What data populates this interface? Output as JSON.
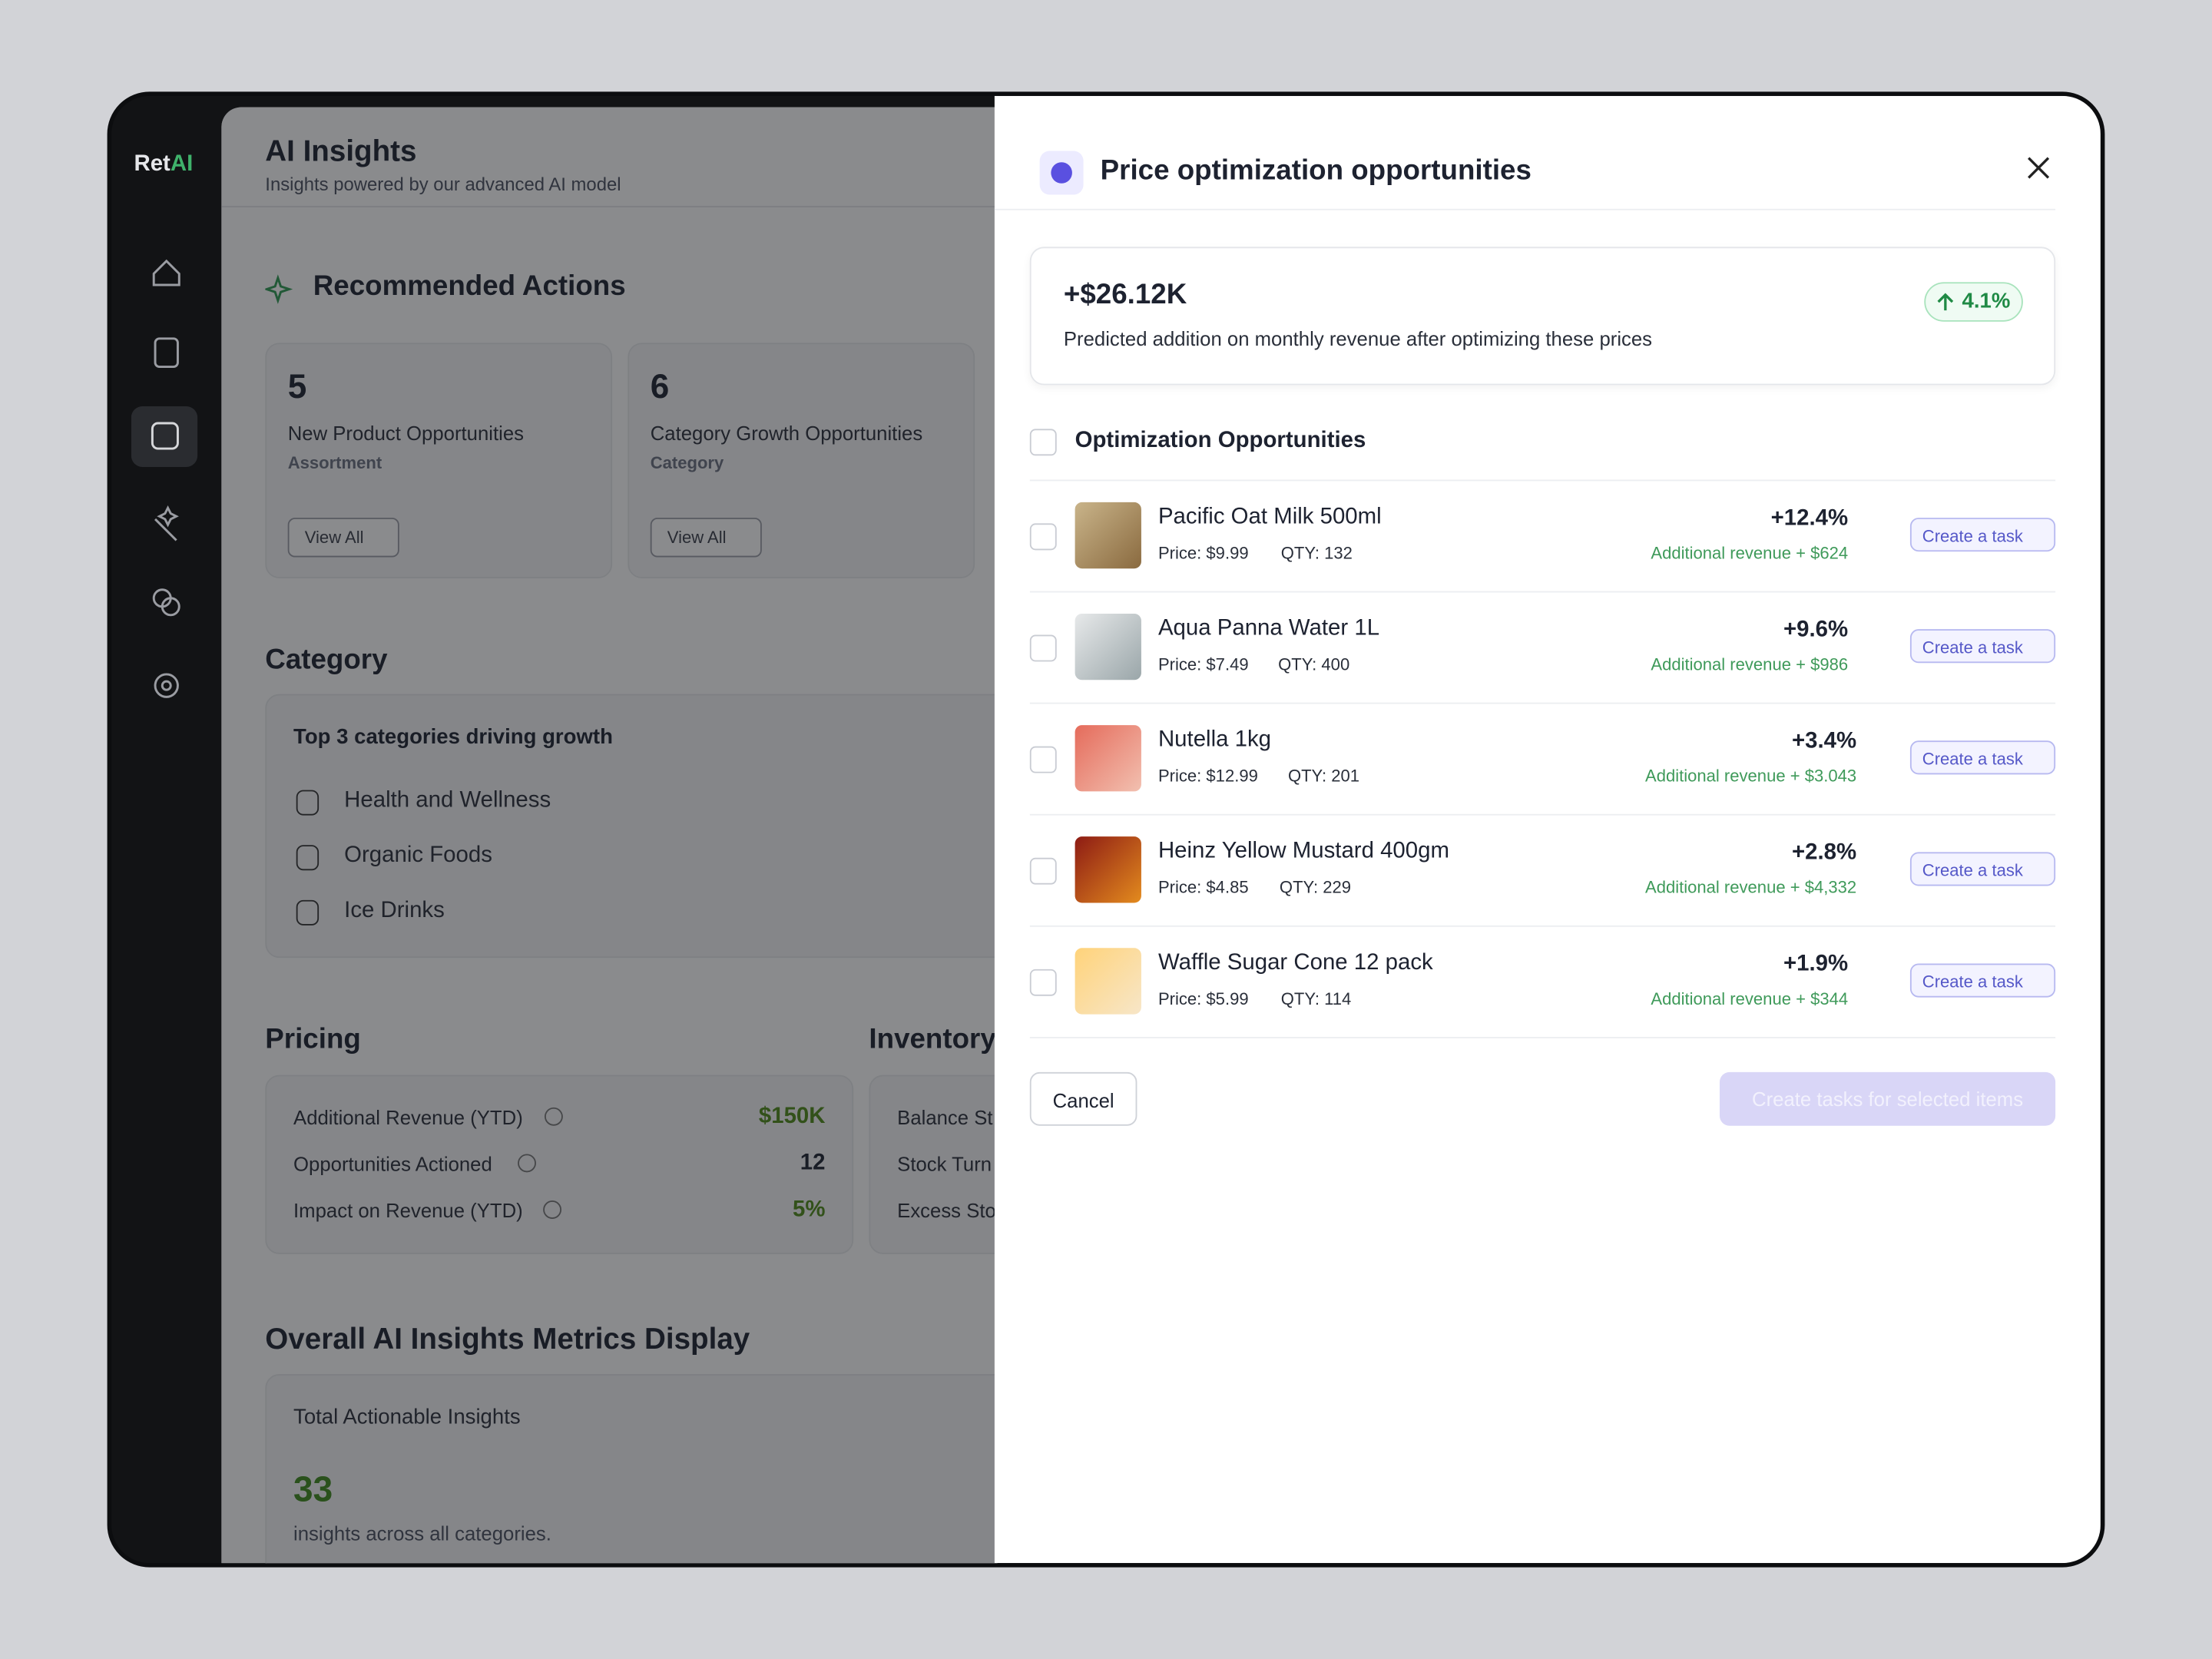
{
  "sidebar": {
    "logo_ret": "Ret",
    "logo_ai": "AI"
  },
  "header": {
    "title": "AI Insights",
    "subtitle": "Insights powered by our advanced AI model"
  },
  "recommended": {
    "title": "Recommended Actions",
    "cards": [
      {
        "count": "5",
        "label": "New Product Opportunities",
        "tag": "Assortment",
        "button": "View All"
      },
      {
        "count": "6",
        "label": "Category Growth Opportunities",
        "tag": "Category",
        "button": "View All"
      }
    ]
  },
  "category": {
    "title": "Category",
    "card_title": "Top 3 categories driving growth",
    "items": [
      "Health and Wellness",
      "Organic Foods",
      "Ice Drinks"
    ]
  },
  "pricing": {
    "title": "Pricing",
    "rows": [
      {
        "label": "Additional Revenue (YTD)",
        "value": "$150K"
      },
      {
        "label": "Opportunities Actioned",
        "value": "12"
      },
      {
        "label": "Impact on Revenue (YTD)",
        "value": "5%"
      }
    ]
  },
  "inventory": {
    "title": "Inventory",
    "rows": [
      "Balance St",
      "Stock Turn",
      "Excess Sto"
    ]
  },
  "metrics": {
    "title": "Overall AI Insights Metrics Display",
    "card_title": "Total Actionable Insights",
    "value": "33",
    "caption": "insights across all categories."
  },
  "modal": {
    "title": "Price optimization opportunities",
    "summary": {
      "value": "+$26.12K",
      "caption": "Predicted addition on monthly revenue after optimizing these prices",
      "badge": "4.1%"
    },
    "list_title": "Optimization Opportunities",
    "items": [
      {
        "name": "Pacific Oat Milk 500ml",
        "price": "Price: $9.99",
        "qty": "QTY: 132",
        "change": "+12.4%",
        "revenue": "Additional revenue + $624",
        "button": "Create a task"
      },
      {
        "name": "Aqua Panna Water 1L",
        "price": "Price: $7.49",
        "qty": "QTY: 400",
        "change": "+9.6%",
        "revenue": "Additional revenue + $986",
        "button": "Create a task"
      },
      {
        "name": "Nutella 1kg",
        "price": "Price: $12.99",
        "qty": "QTY: 201",
        "change": "+3.4%",
        "revenue": "Additional revenue + $3.043",
        "button": "Create a task"
      },
      {
        "name": "Heinz Yellow Mustard 400gm",
        "price": "Price: $4.85",
        "qty": "QTY: 229",
        "change": "+2.8%",
        "revenue": "Additional revenue + $4,332",
        "button": "Create a task"
      },
      {
        "name": "Waffle Sugar Cone 12 pack",
        "price": "Price: $5.99",
        "qty": "QTY: 114",
        "change": "+1.9%",
        "revenue": "Additional revenue + $344",
        "button": "Create a task"
      }
    ],
    "cancel": "Cancel",
    "submit": "Create tasks for selected items"
  }
}
